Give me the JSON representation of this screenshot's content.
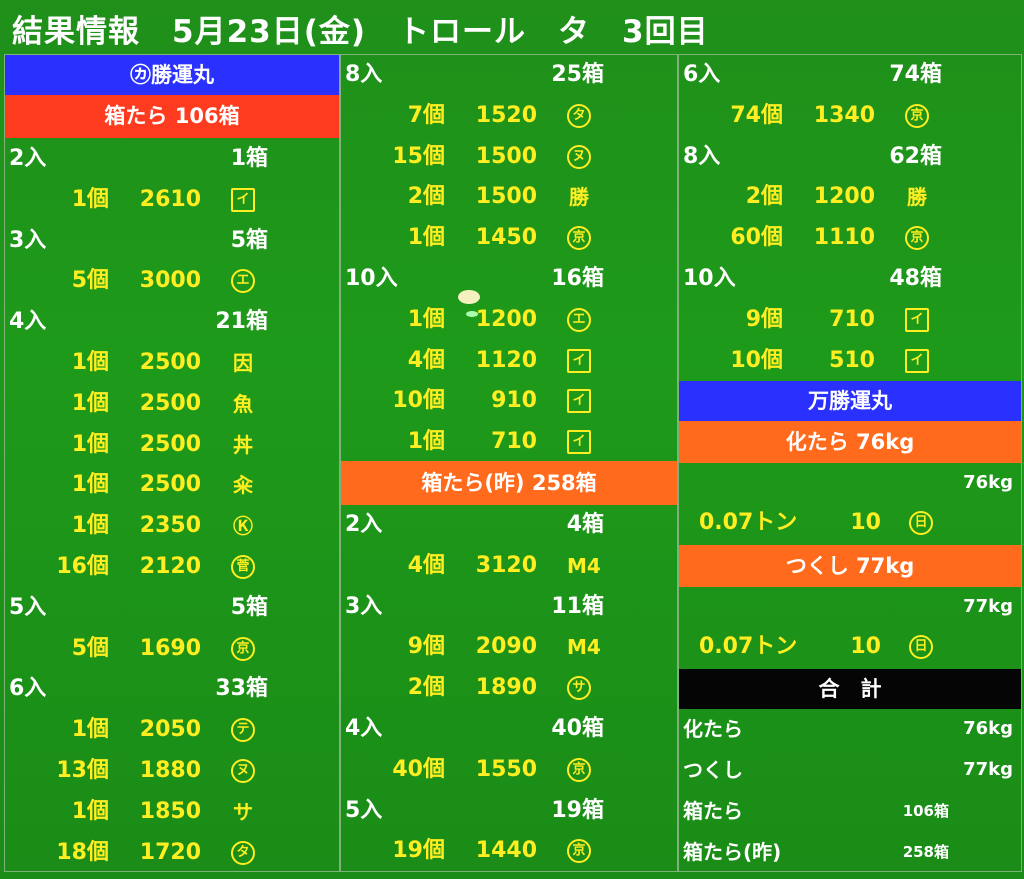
{
  "title": "結果情報　5月23日(金)　トロール　タ　3回目",
  "colors": {
    "background": "#1e9a1a",
    "blue_header": "#2a31ff",
    "red_header": "#ff3b1f",
    "orange_header": "#ff6a1c",
    "value_text": "#ffee22",
    "label_text": "#ffffff"
  },
  "col1": {
    "boat_header": "㋕勝運丸",
    "category_header": "箱たら 106箱",
    "items": [
      {
        "type": "size",
        "label": "2入",
        "total": "1箱"
      },
      {
        "type": "price",
        "count": "1個",
        "price": "2610",
        "mark": "イ",
        "mark_icon": "square-i-mark"
      },
      {
        "type": "size",
        "label": "3入",
        "total": "5箱"
      },
      {
        "type": "price",
        "count": "5個",
        "price": "3000",
        "mark": "エ",
        "mark_icon": "circle-e-mark"
      },
      {
        "type": "size",
        "label": "4入",
        "total": "21箱"
      },
      {
        "type": "price",
        "count": "1個",
        "price": "2500",
        "mark": "因",
        "mark_icon": "kanji-mark"
      },
      {
        "type": "price",
        "count": "1個",
        "price": "2500",
        "mark": "魚",
        "mark_icon": "kanji-mark"
      },
      {
        "type": "price",
        "count": "1個",
        "price": "2500",
        "mark": "丼",
        "mark_icon": "kanji-mark"
      },
      {
        "type": "price",
        "count": "1個",
        "price": "2500",
        "mark": "籴",
        "mark_icon": "kanji-mark"
      },
      {
        "type": "price",
        "count": "1個",
        "price": "2350",
        "mark": "Ⓚ",
        "mark_icon": "k-mark"
      },
      {
        "type": "price",
        "count": "16個",
        "price": "2120",
        "mark": "菅",
        "mark_icon": "circle-kanji-mark"
      },
      {
        "type": "size",
        "label": "5入",
        "total": "5箱"
      },
      {
        "type": "price",
        "count": "5個",
        "price": "1690",
        "mark": "京",
        "mark_icon": "circle-kyo-mark"
      },
      {
        "type": "size",
        "label": "6入",
        "total": "33箱"
      },
      {
        "type": "price",
        "count": "1個",
        "price": "2050",
        "mark": "テ",
        "mark_icon": "circle-te-mark"
      },
      {
        "type": "price",
        "count": "13個",
        "price": "1880",
        "mark": "ヌ",
        "mark_icon": "circle-nu-mark"
      },
      {
        "type": "price",
        "count": "1個",
        "price": "1850",
        "mark": "サ",
        "mark_icon": "sa-mark"
      },
      {
        "type": "price",
        "count": "18個",
        "price": "1720",
        "mark": "タ",
        "mark_icon": "circle-ta-mark"
      }
    ]
  },
  "col2": {
    "items_top": [
      {
        "type": "size",
        "label": "8入",
        "total": "25箱"
      },
      {
        "type": "price",
        "count": "7個",
        "price": "1520",
        "mark": "タ",
        "mark_icon": "circle-ta-mark"
      },
      {
        "type": "price",
        "count": "15個",
        "price": "1500",
        "mark": "ヌ",
        "mark_icon": "circle-nu-mark"
      },
      {
        "type": "price",
        "count": "2個",
        "price": "1500",
        "mark": "勝",
        "mark_icon": "roof-katsu-mark"
      },
      {
        "type": "price",
        "count": "1個",
        "price": "1450",
        "mark": "京",
        "mark_icon": "circle-kyo-mark"
      },
      {
        "type": "size",
        "label": "10入",
        "total": "16箱"
      },
      {
        "type": "price",
        "count": "1個",
        "price": "1200",
        "mark": "エ",
        "mark_icon": "circle-e-mark"
      },
      {
        "type": "price",
        "count": "4個",
        "price": "1120",
        "mark": "イ",
        "mark_icon": "square-i-mark"
      },
      {
        "type": "price",
        "count": "10個",
        "price": "910",
        "mark": "イ",
        "mark_icon": "square-i-mark"
      },
      {
        "type": "price",
        "count": "1個",
        "price": "710",
        "mark": "イ",
        "mark_icon": "square-i-mark"
      }
    ],
    "category_header": "箱たら(昨) 258箱",
    "items_bottom": [
      {
        "type": "size",
        "label": "2入",
        "total": "4箱"
      },
      {
        "type": "price",
        "count": "4個",
        "price": "3120",
        "mark": "M4",
        "mark_icon": "m-mark"
      },
      {
        "type": "size",
        "label": "3入",
        "total": "11箱"
      },
      {
        "type": "price",
        "count": "9個",
        "price": "2090",
        "mark": "M4",
        "mark_icon": "m-mark"
      },
      {
        "type": "price",
        "count": "2個",
        "price": "1890",
        "mark": "サ",
        "mark_icon": "circle-sa-mark"
      },
      {
        "type": "size",
        "label": "4入",
        "total": "40箱"
      },
      {
        "type": "price",
        "count": "40個",
        "price": "1550",
        "mark": "京",
        "mark_icon": "circle-kyo-mark"
      },
      {
        "type": "size",
        "label": "5入",
        "total": "19箱"
      },
      {
        "type": "price",
        "count": "19個",
        "price": "1440",
        "mark": "京",
        "mark_icon": "circle-kyo-mark"
      }
    ]
  },
  "col3": {
    "items_top": [
      {
        "type": "size",
        "label": "6入",
        "total": "74箱"
      },
      {
        "type": "price",
        "count": "74個",
        "price": "1340",
        "mark": "京",
        "mark_icon": "circle-kyo-mark"
      },
      {
        "type": "size",
        "label": "8入",
        "total": "62箱"
      },
      {
        "type": "price",
        "count": "2個",
        "price": "1200",
        "mark": "勝",
        "mark_icon": "roof-katsu-mark"
      },
      {
        "type": "price",
        "count": "60個",
        "price": "1110",
        "mark": "京",
        "mark_icon": "circle-kyo-mark"
      },
      {
        "type": "size",
        "label": "10入",
        "total": "48箱"
      },
      {
        "type": "price",
        "count": "9個",
        "price": "710",
        "mark": "イ",
        "mark_icon": "square-i-mark"
      },
      {
        "type": "price",
        "count": "10個",
        "price": "510",
        "mark": "イ",
        "mark_icon": "square-i-mark"
      }
    ],
    "boat_header": "万勝運丸",
    "kadara": {
      "header": "化たら 76kg",
      "weight": "76kg",
      "qty": "0.07トン",
      "price": "10",
      "mark": "日",
      "mark_icon": "circle-hi-mark"
    },
    "tsukushi": {
      "header": "つくし 77kg",
      "weight": "77kg",
      "qty": "0.07トン",
      "price": "10",
      "mark": "日",
      "mark_icon": "circle-hi-mark"
    },
    "total": {
      "header": "合　計",
      "rows": [
        {
          "label": "化たら",
          "value": "76kg"
        },
        {
          "label": "つくし",
          "value": "77kg"
        },
        {
          "label": "箱たら",
          "value": "106箱"
        },
        {
          "label": "箱たら(昨)",
          "value": "258箱"
        }
      ]
    }
  }
}
